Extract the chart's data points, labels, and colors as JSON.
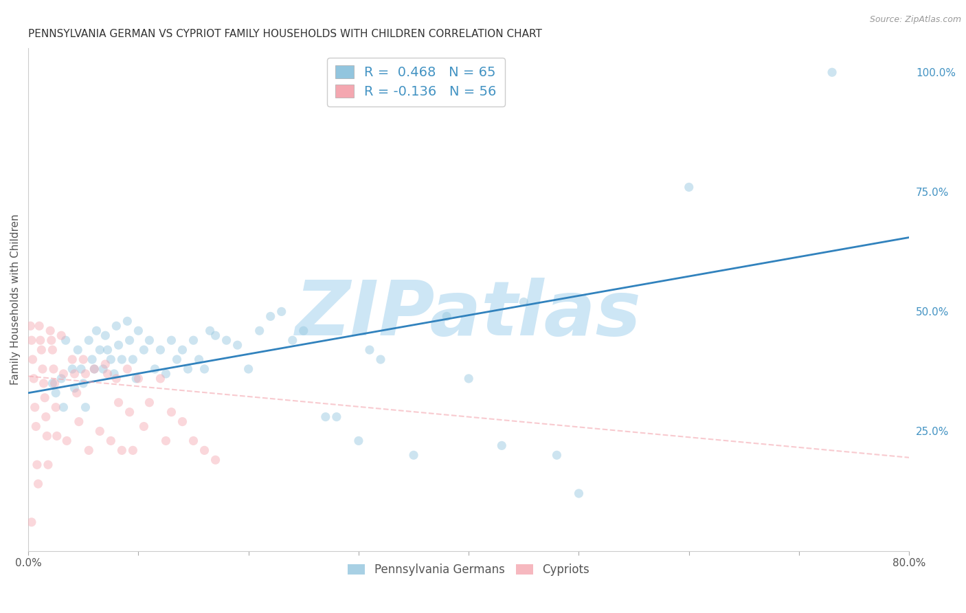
{
  "title": "PENNSYLVANIA GERMAN VS CYPRIOT FAMILY HOUSEHOLDS WITH CHILDREN CORRELATION CHART",
  "source": "Source: ZipAtlas.com",
  "ylabel": "Family Households with Children",
  "watermark": "ZIPatlas",
  "xlim": [
    0.0,
    0.8
  ],
  "ylim": [
    0.0,
    1.05
  ],
  "xticks": [
    0.0,
    0.1,
    0.2,
    0.3,
    0.4,
    0.5,
    0.6,
    0.7,
    0.8
  ],
  "xticklabels": [
    "0.0%",
    "",
    "",
    "",
    "",
    "",
    "",
    "",
    "80.0%"
  ],
  "yticks_right": [
    0.0,
    0.25,
    0.5,
    0.75,
    1.0
  ],
  "yticklabels_right": [
    "",
    "25.0%",
    "50.0%",
    "75.0%",
    "100.0%"
  ],
  "legend_blue_r": "R =  0.468",
  "legend_blue_n": "N = 65",
  "legend_pink_r": "R = -0.136",
  "legend_pink_n": "N = 56",
  "legend_label_blue": "Pennsylvania Germans",
  "legend_label_pink": "Cypriots",
  "blue_color": "#92c5de",
  "blue_line_color": "#3182bd",
  "pink_color": "#f4a7b0",
  "pink_line_color": "#f4a7b0",
  "right_axis_color": "#4393c3",
  "blue_scatter_x": [
    0.022,
    0.025,
    0.03,
    0.032,
    0.034,
    0.04,
    0.042,
    0.045,
    0.048,
    0.05,
    0.052,
    0.055,
    0.058,
    0.06,
    0.062,
    0.065,
    0.068,
    0.07,
    0.072,
    0.075,
    0.078,
    0.08,
    0.082,
    0.085,
    0.09,
    0.092,
    0.095,
    0.098,
    0.1,
    0.105,
    0.11,
    0.115,
    0.12,
    0.125,
    0.13,
    0.135,
    0.14,
    0.145,
    0.15,
    0.155,
    0.16,
    0.165,
    0.17,
    0.18,
    0.19,
    0.2,
    0.21,
    0.22,
    0.23,
    0.24,
    0.25,
    0.27,
    0.28,
    0.3,
    0.31,
    0.32,
    0.35,
    0.38,
    0.4,
    0.43,
    0.45,
    0.48,
    0.5,
    0.6,
    0.73
  ],
  "blue_scatter_y": [
    0.35,
    0.33,
    0.36,
    0.3,
    0.44,
    0.38,
    0.34,
    0.42,
    0.38,
    0.35,
    0.3,
    0.44,
    0.4,
    0.38,
    0.46,
    0.42,
    0.38,
    0.45,
    0.42,
    0.4,
    0.37,
    0.47,
    0.43,
    0.4,
    0.48,
    0.44,
    0.4,
    0.36,
    0.46,
    0.42,
    0.44,
    0.38,
    0.42,
    0.37,
    0.44,
    0.4,
    0.42,
    0.38,
    0.44,
    0.4,
    0.38,
    0.46,
    0.45,
    0.44,
    0.43,
    0.38,
    0.46,
    0.49,
    0.5,
    0.44,
    0.46,
    0.28,
    0.28,
    0.23,
    0.42,
    0.4,
    0.2,
    0.49,
    0.36,
    0.22,
    0.52,
    0.2,
    0.12,
    0.76,
    1.0
  ],
  "pink_scatter_x": [
    0.002,
    0.003,
    0.004,
    0.005,
    0.006,
    0.007,
    0.008,
    0.009,
    0.01,
    0.011,
    0.012,
    0.013,
    0.014,
    0.015,
    0.016,
    0.017,
    0.018,
    0.02,
    0.021,
    0.022,
    0.023,
    0.024,
    0.025,
    0.026,
    0.03,
    0.032,
    0.035,
    0.04,
    0.042,
    0.044,
    0.046,
    0.05,
    0.052,
    0.055,
    0.06,
    0.065,
    0.07,
    0.072,
    0.075,
    0.08,
    0.082,
    0.085,
    0.09,
    0.092,
    0.095,
    0.1,
    0.105,
    0.11,
    0.12,
    0.125,
    0.13,
    0.14,
    0.15,
    0.16,
    0.17,
    0.003
  ],
  "pink_scatter_y": [
    0.47,
    0.44,
    0.4,
    0.36,
    0.3,
    0.26,
    0.18,
    0.14,
    0.47,
    0.44,
    0.42,
    0.38,
    0.35,
    0.32,
    0.28,
    0.24,
    0.18,
    0.46,
    0.44,
    0.42,
    0.38,
    0.35,
    0.3,
    0.24,
    0.45,
    0.37,
    0.23,
    0.4,
    0.37,
    0.33,
    0.27,
    0.4,
    0.37,
    0.21,
    0.38,
    0.25,
    0.39,
    0.37,
    0.23,
    0.36,
    0.31,
    0.21,
    0.38,
    0.29,
    0.21,
    0.36,
    0.26,
    0.31,
    0.36,
    0.23,
    0.29,
    0.27,
    0.23,
    0.21,
    0.19,
    0.06
  ],
  "blue_trendline_x": [
    0.0,
    0.8
  ],
  "blue_trendline_y": [
    0.33,
    0.655
  ],
  "pink_trendline_x": [
    0.0,
    0.8
  ],
  "pink_trendline_y": [
    0.365,
    0.195
  ],
  "background_color": "#ffffff",
  "title_fontsize": 11,
  "axis_label_fontsize": 11,
  "tick_fontsize": 11,
  "scatter_size": 90,
  "scatter_alpha": 0.45,
  "grid_color": "#cccccc",
  "watermark_color": "#cde6f5",
  "watermark_fontsize": 80
}
